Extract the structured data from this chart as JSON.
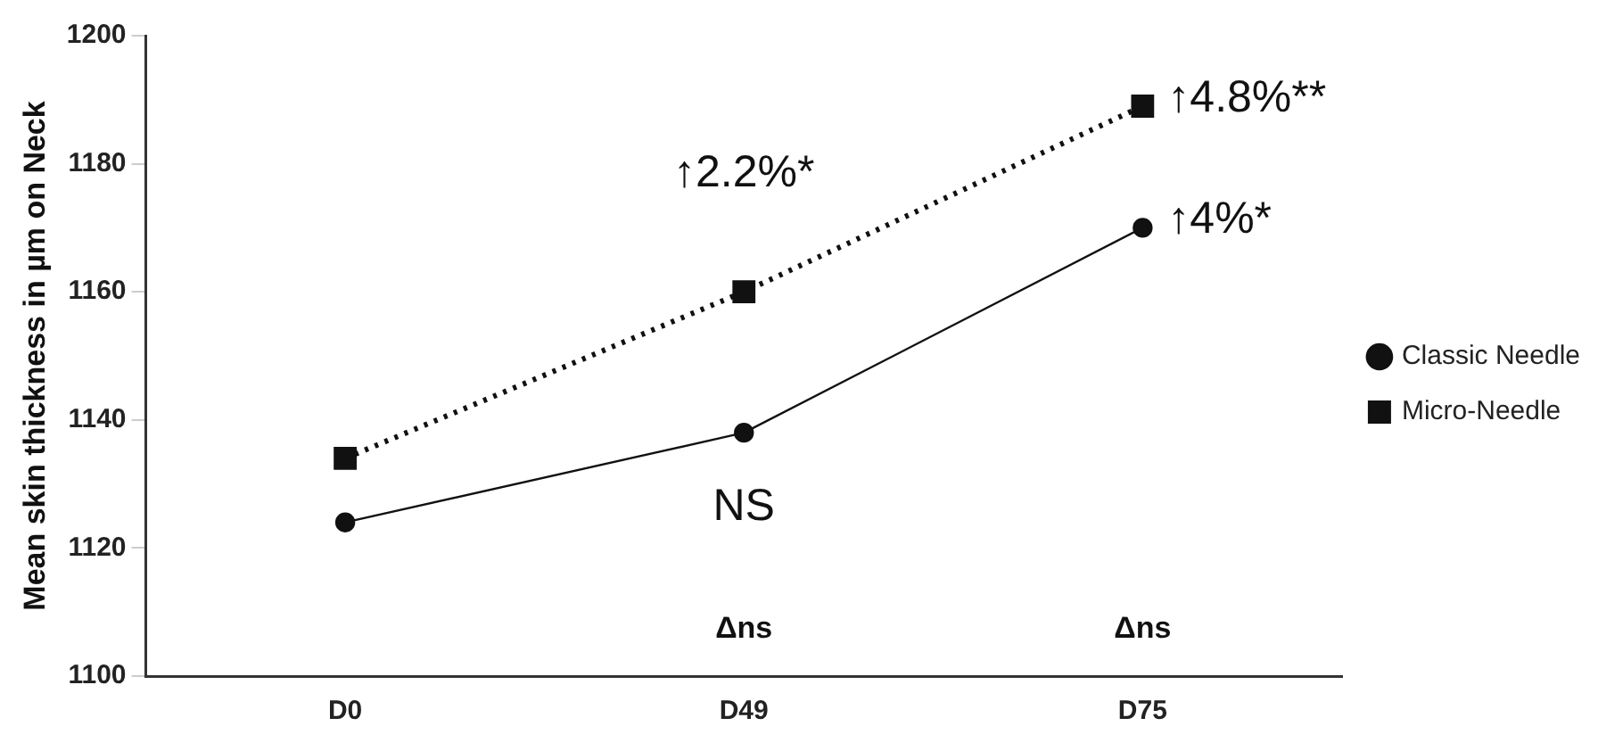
{
  "chart_data": {
    "type": "line",
    "ylabel": "Mean skin thickness in µm on Neck",
    "categories": [
      "D0",
      "D49",
      "D75"
    ],
    "series": [
      {
        "name": "Classic Needle",
        "color": "#111111",
        "values": [
          1124,
          1138,
          1170
        ],
        "marker": "circle",
        "line_style": "solid"
      },
      {
        "name": "Micro-Needle",
        "color": "#111111",
        "values": [
          1134,
          1160,
          1189
        ],
        "marker": "square",
        "line_style": "dotted"
      }
    ],
    "ylim": [
      1100,
      1200
    ],
    "yticks": [
      1100,
      1120,
      1140,
      1160,
      1180,
      1200
    ],
    "grid": false,
    "legend": "right",
    "annotations": [
      {
        "text": "↑2.2%*",
        "x": "D49",
        "y": 1160
      },
      {
        "text": "↑4.8%**",
        "x": "D75",
        "y": 1189
      },
      {
        "text": "↑4%*",
        "x": "D75",
        "y": 1170
      },
      {
        "text": "NS",
        "x": "D49",
        "y": 1138
      },
      "Δns",
      "Δns"
    ]
  }
}
